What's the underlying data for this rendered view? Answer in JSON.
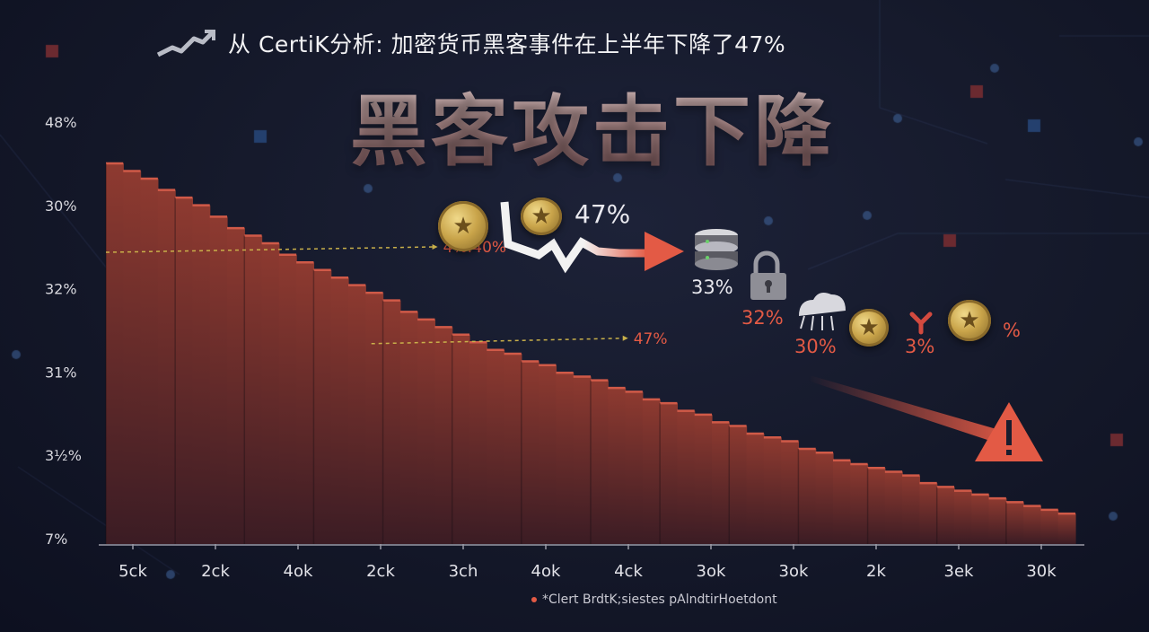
{
  "header": {
    "title": "从 CertiK分析: 加密货币黑客事件在上半年下降了47%",
    "icon": "chart-trend-icon"
  },
  "headline": "黑客攻击下降",
  "chart_data": {
    "type": "area",
    "y_tick_labels": [
      "48%",
      "30%",
      "32%",
      "31%",
      "3½%",
      "7%"
    ],
    "x_tick_labels": [
      "5ck",
      "2ck",
      "4ok",
      "2ck",
      "3ch",
      "4ok",
      "4ck",
      "3ok",
      "3ok",
      "2k",
      "3ek",
      "30k"
    ],
    "values": [
      100,
      98,
      96,
      93,
      91,
      89,
      86,
      83,
      81,
      79,
      76,
      74,
      72,
      70,
      68,
      66,
      64,
      61,
      59,
      57,
      55,
      53,
      51,
      50,
      48,
      47,
      45,
      44,
      43,
      41,
      40,
      38,
      37,
      35,
      34,
      32,
      31,
      29,
      28,
      27,
      25,
      24,
      22,
      21,
      20,
      19,
      18,
      16,
      15,
      14,
      13,
      12,
      11,
      10,
      9,
      8
    ],
    "ylim": [
      0,
      100
    ],
    "annotations": [
      {
        "label": "4%:40%",
        "index": 9
      },
      {
        "label": "47%",
        "index": 20
      }
    ],
    "colors": {
      "fill_top": "#8e3a30",
      "fill_bottom": "#3b1c24",
      "edge": "#d05a48",
      "annotation": "#e35a45",
      "dash": "#c9b04a"
    }
  },
  "icons": {
    "trend_value": "47%",
    "labels": [
      {
        "name": "server-value",
        "text": "33%",
        "light": true
      },
      {
        "name": "lock-value",
        "text": "32%"
      },
      {
        "name": "chip-value",
        "text": "30%"
      },
      {
        "name": "link-value",
        "text": "3%"
      },
      {
        "name": "coin-value",
        "text": "%"
      }
    ]
  },
  "source": "*Clert BrdtK;siestes pAlndtirHoetdont"
}
